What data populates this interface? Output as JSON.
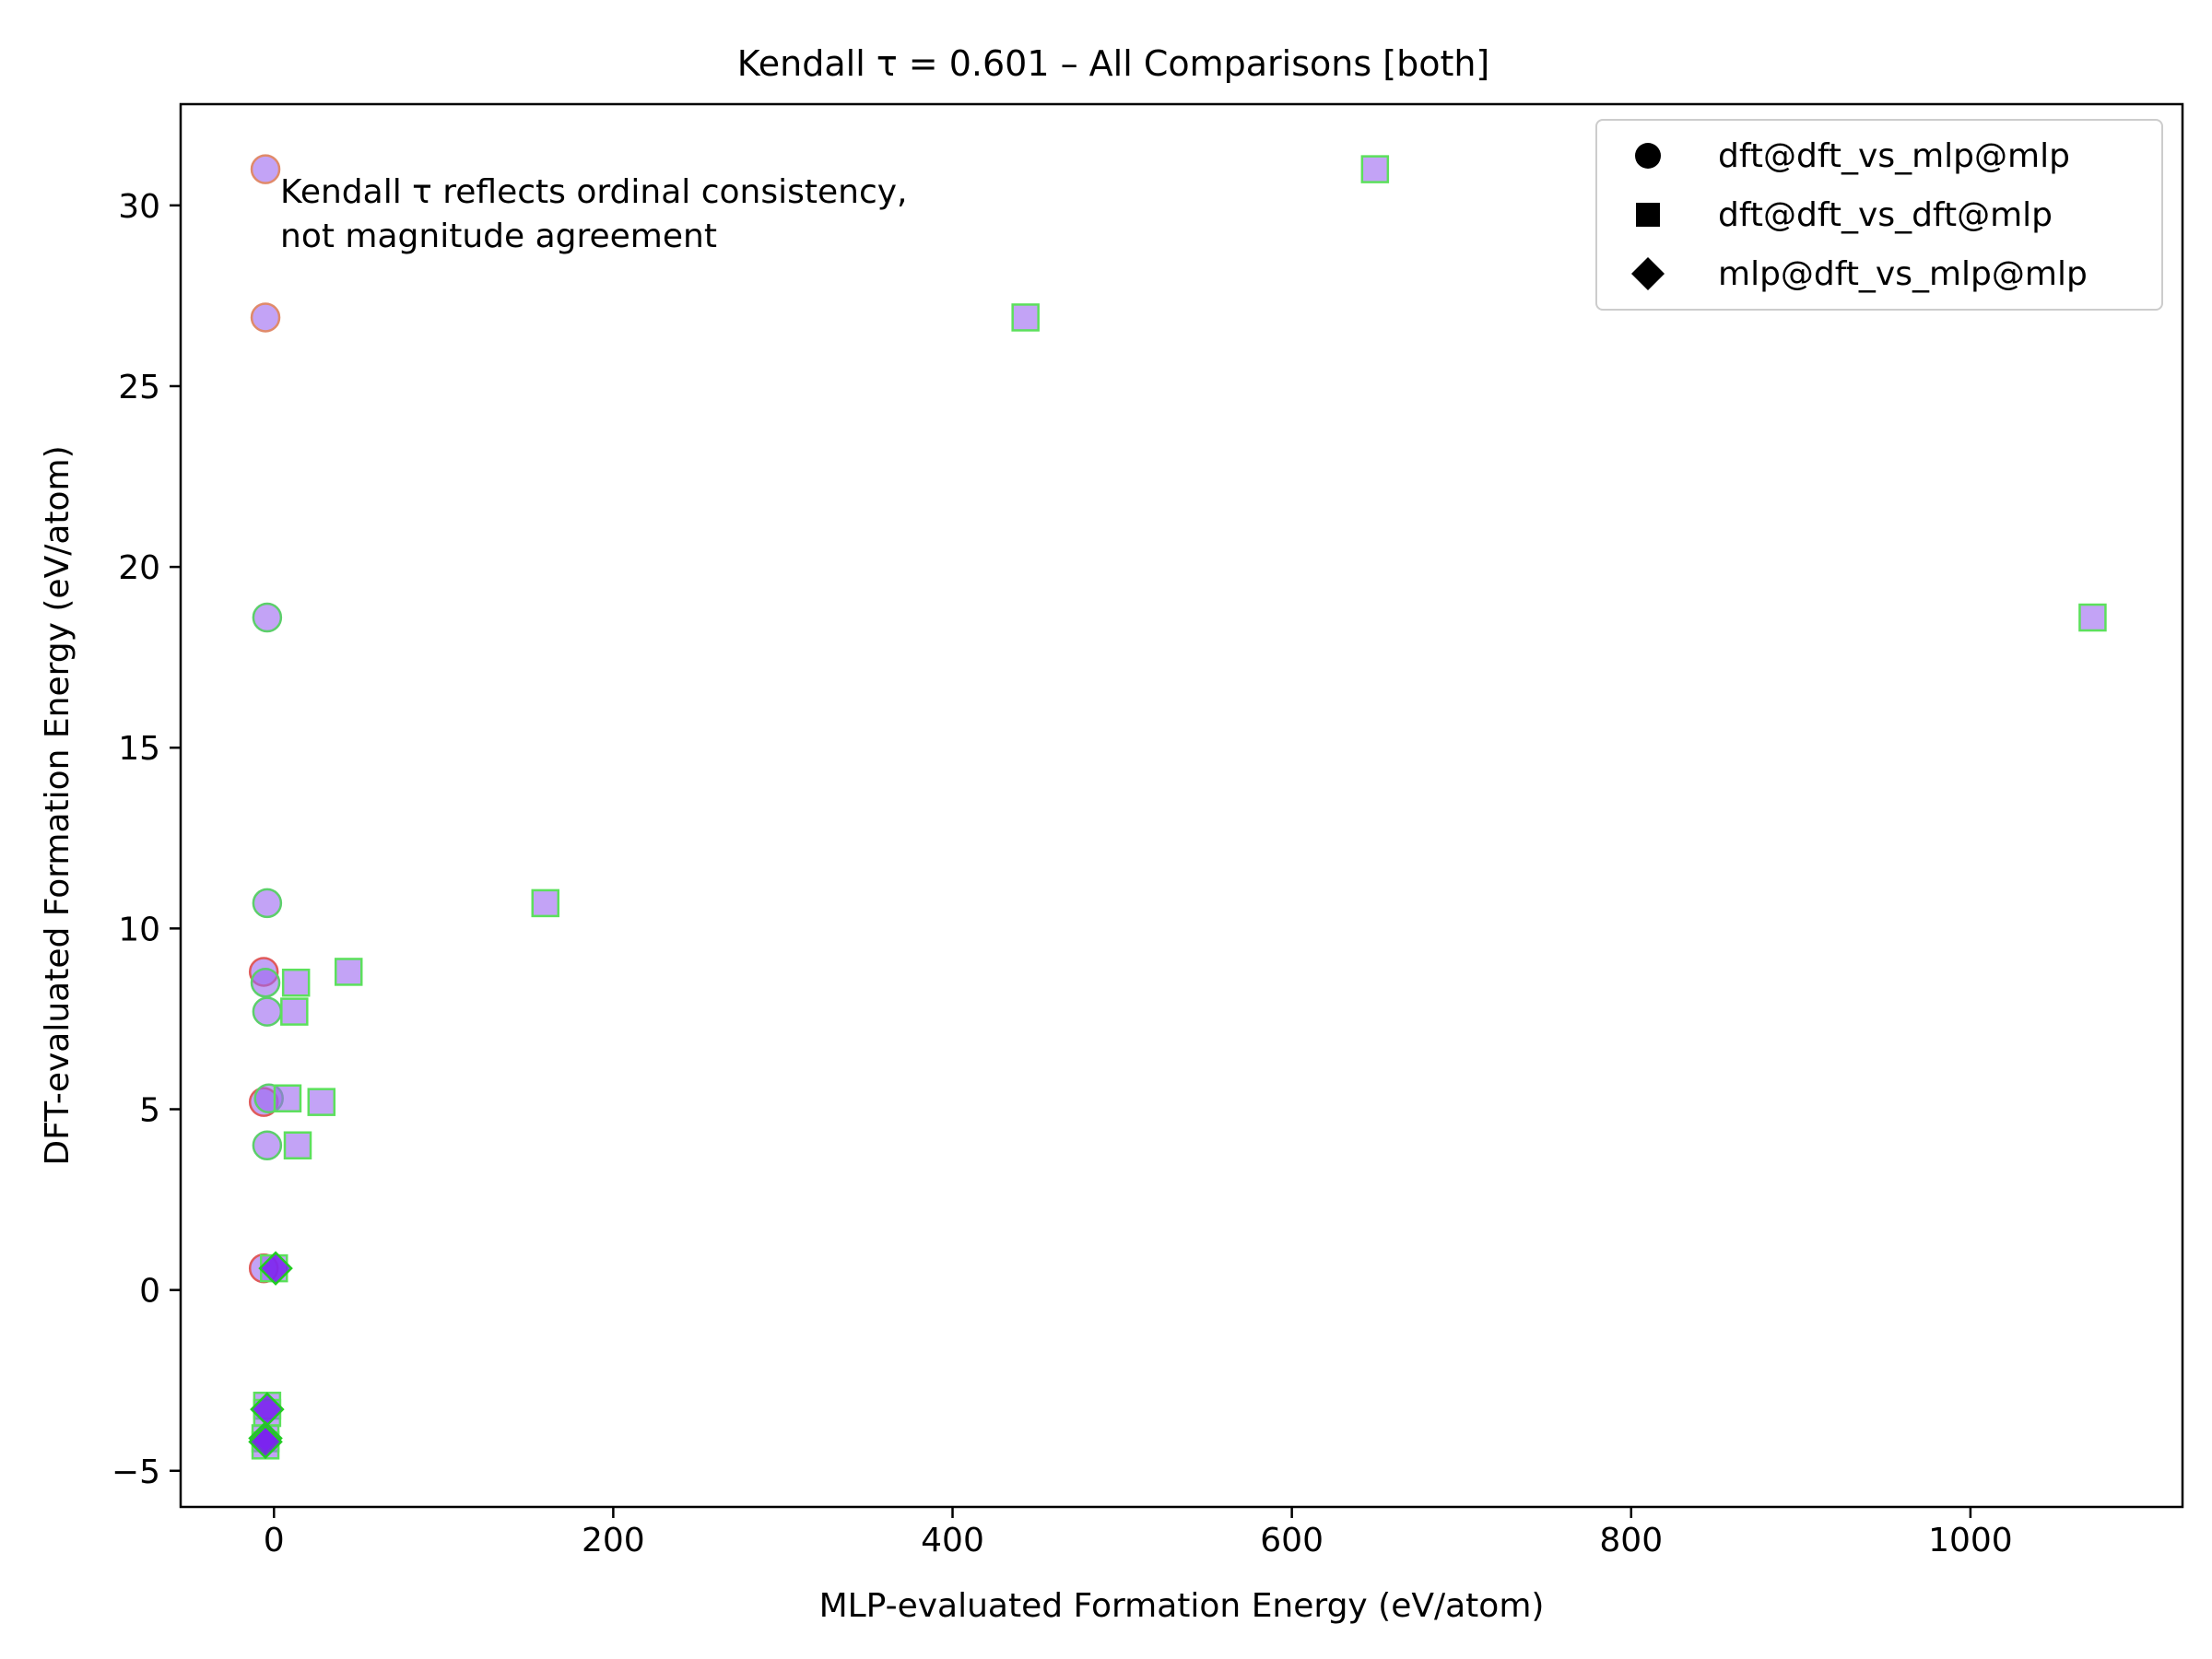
{
  "chart_data": {
    "type": "scatter",
    "title": "Kendall τ = 0.601 – All Comparisons [both]",
    "xlabel": "MLP-evaluated Formation Energy (eV/atom)",
    "ylabel": "DFT-evaluated Formation Energy (eV/atom)",
    "xlim": [
      -55,
      1125
    ],
    "ylim": [
      -6.0,
      32.8
    ],
    "xticks": [
      0,
      200,
      400,
      600,
      800,
      1000
    ],
    "xtick_labels": [
      "0",
      "200",
      "400",
      "600",
      "800",
      "1000"
    ],
    "yticks": [
      -5,
      0,
      5,
      10,
      15,
      20,
      25,
      30
    ],
    "ytick_labels": [
      "−5",
      "0",
      "5",
      "10",
      "15",
      "20",
      "25",
      "30"
    ],
    "grid": false,
    "legend_position": "top-right",
    "annotation": [
      "Kendall τ reflects ordinal consistency,",
      "not magnitude agreement"
    ],
    "series": [
      {
        "name": "dft@dft_vs_mlp@mlp",
        "marker": "circle",
        "fill": "#9b66f0",
        "edge": "#e08a6a",
        "points": [
          {
            "x": -5,
            "y": 31.0,
            "edge": "#e08a6a"
          },
          {
            "x": -5,
            "y": 26.9,
            "edge": "#e08a6a"
          },
          {
            "x": -4,
            "y": 18.6,
            "edge": "#5ccf6a"
          },
          {
            "x": -4,
            "y": 10.7,
            "edge": "#5ccf6a"
          },
          {
            "x": -6,
            "y": 8.8,
            "edge": "#e05a5a"
          },
          {
            "x": -5,
            "y": 8.5,
            "edge": "#5ccf6a"
          },
          {
            "x": -4,
            "y": 7.7,
            "edge": "#5ccf6a"
          },
          {
            "x": -6,
            "y": 5.2,
            "edge": "#e05a5a"
          },
          {
            "x": -3,
            "y": 5.3,
            "edge": "#5ccf6a"
          },
          {
            "x": -4,
            "y": 4.0,
            "edge": "#5ccf6a"
          },
          {
            "x": -6,
            "y": 0.6,
            "edge": "#e05a5a"
          }
        ]
      },
      {
        "name": "dft@dft_vs_dft@mlp",
        "marker": "square",
        "fill": "#9b66f0",
        "edge": "#5ce05c",
        "points": [
          {
            "x": 649,
            "y": 31.0
          },
          {
            "x": 443,
            "y": 26.9
          },
          {
            "x": 1072,
            "y": 18.6
          },
          {
            "x": 160,
            "y": 10.7
          },
          {
            "x": 44,
            "y": 8.8
          },
          {
            "x": 13,
            "y": 8.5
          },
          {
            "x": 12,
            "y": 7.7
          },
          {
            "x": 8,
            "y": 5.3
          },
          {
            "x": 28,
            "y": 5.2
          },
          {
            "x": 14,
            "y": 4.0
          },
          {
            "x": 0,
            "y": 0.6
          },
          {
            "x": -4,
            "y": -3.2
          },
          {
            "x": -4,
            "y": -3.4
          },
          {
            "x": -5,
            "y": -4.1
          },
          {
            "x": -5,
            "y": -4.3
          }
        ]
      },
      {
        "name": "mlp@dft_vs_mlp@mlp",
        "marker": "diamond",
        "fill": "#7a22ee",
        "edge": "#22cc22",
        "points": [
          {
            "x": 1,
            "y": 0.6
          },
          {
            "x": -4,
            "y": -3.3
          },
          {
            "x": -5,
            "y": -4.1
          },
          {
            "x": -5,
            "y": -4.2
          }
        ]
      }
    ]
  }
}
